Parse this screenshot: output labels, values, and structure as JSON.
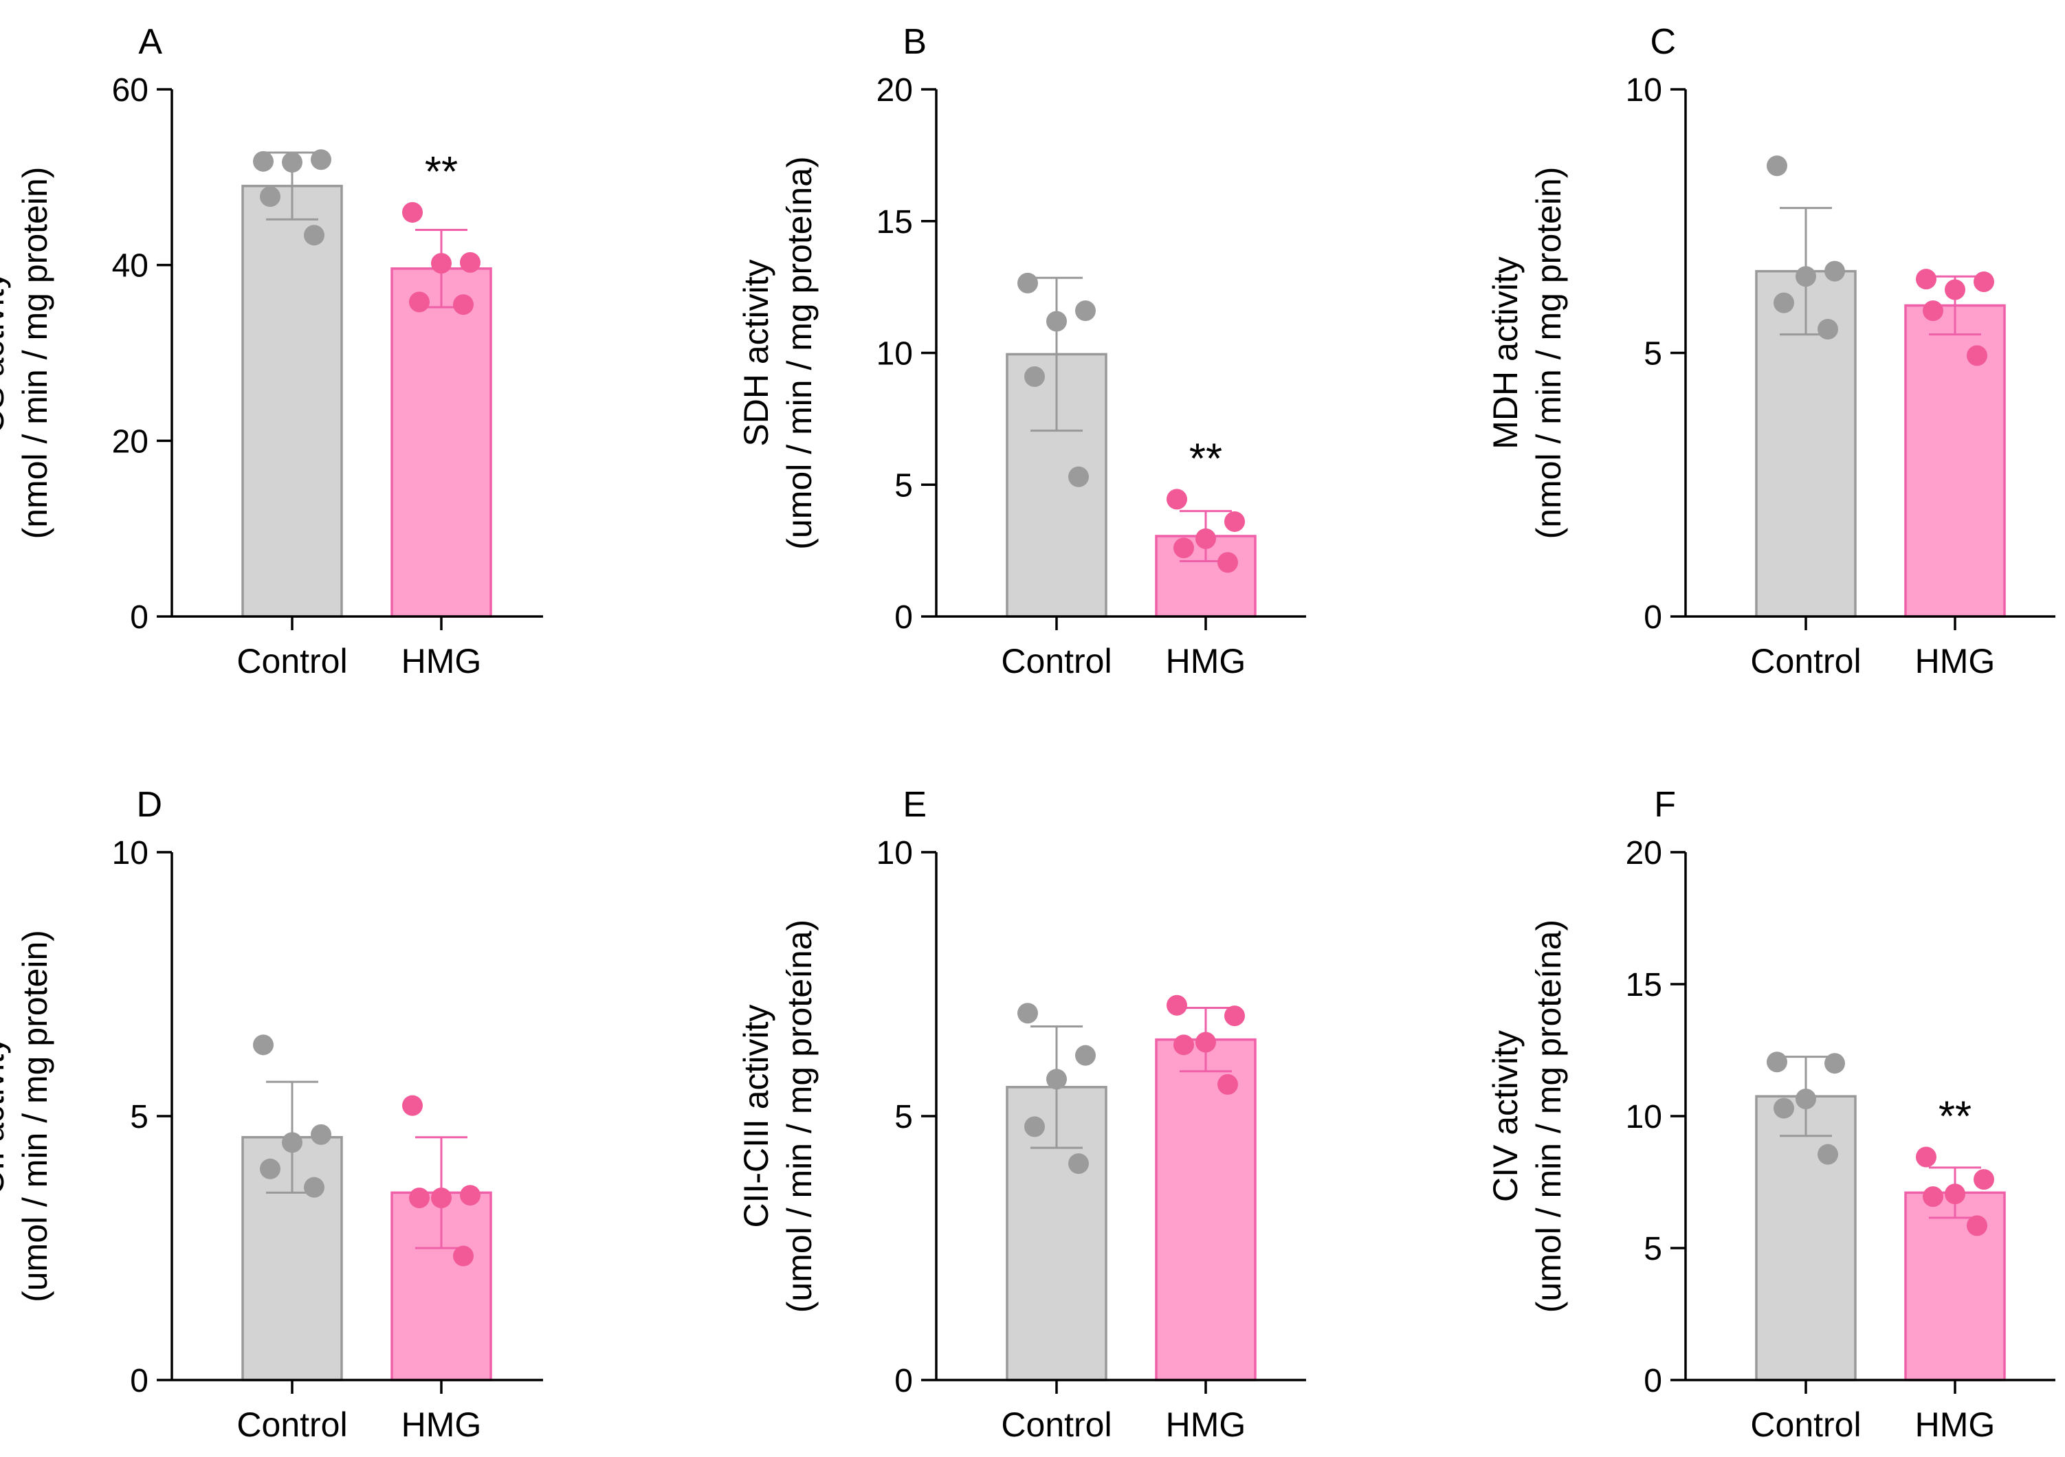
{
  "colors": {
    "control_fill": "#d3d3d3",
    "control_stroke": "#999999",
    "control_point": "#9b9b9b",
    "hmg_fill": "#ffa0cc",
    "hmg_stroke": "#f060a8",
    "hmg_point": "#f25a97",
    "axis": "#000000"
  },
  "chart_data": [
    {
      "id": "A",
      "type": "bar",
      "letter": "A",
      "title": "",
      "ylabel_line1": "CS activity",
      "ylabel_line2": "(nmol / min / mg protein)",
      "ylim": [
        0,
        60
      ],
      "yticks": [
        0,
        20,
        40,
        60
      ],
      "categories": [
        "Control",
        "HMG"
      ],
      "values": [
        49,
        39.6
      ],
      "error": [
        3.8,
        4.4
      ],
      "points": [
        [
          51.8,
          52.0,
          51.7,
          47.8,
          43.4
        ],
        [
          46.0,
          40.3,
          40.2,
          35.8,
          35.5
        ]
      ],
      "significance": [
        "",
        "**"
      ]
    },
    {
      "id": "B",
      "type": "bar",
      "letter": "B",
      "title": "",
      "ylabel_line1": "SDH activity",
      "ylabel_line2": "(umol / min / mg proteína)",
      "ylim": [
        0,
        20
      ],
      "yticks": [
        0,
        5,
        10,
        15,
        20
      ],
      "categories": [
        "Control",
        "HMG"
      ],
      "values": [
        9.95,
        3.05
      ],
      "error": [
        2.9,
        0.95
      ],
      "points": [
        [
          12.65,
          11.6,
          11.2,
          9.1,
          5.3
        ],
        [
          4.45,
          3.6,
          2.95,
          2.6,
          2.05
        ]
      ],
      "significance": [
        "",
        "**"
      ]
    },
    {
      "id": "C",
      "type": "bar",
      "letter": "C",
      "title": "",
      "ylabel_line1": "MDH activity",
      "ylabel_line2": "(nmol / min / mg protein)",
      "ylim": [
        0,
        10
      ],
      "yticks": [
        0,
        5,
        10
      ],
      "categories": [
        "Control",
        "HMG"
      ],
      "values": [
        6.55,
        5.9
      ],
      "error": [
        1.2,
        0.55
      ],
      "points": [
        [
          8.55,
          6.55,
          6.45,
          5.95,
          5.45
        ],
        [
          6.4,
          6.35,
          6.2,
          5.8,
          4.95
        ]
      ],
      "significance": [
        "",
        ""
      ]
    },
    {
      "id": "D",
      "type": "bar",
      "letter": "D",
      "title": "",
      "ylabel_line1": "CII activity",
      "ylabel_line2": "(umol / min / mg protein)",
      "ylim": [
        0,
        10
      ],
      "yticks": [
        0,
        5,
        10
      ],
      "categories": [
        "Control",
        "HMG"
      ],
      "values": [
        4.6,
        3.55
      ],
      "error": [
        1.05,
        1.05
      ],
      "points": [
        [
          6.35,
          4.65,
          4.5,
          4.0,
          3.65
        ],
        [
          5.2,
          3.5,
          3.45,
          3.45,
          2.35
        ]
      ],
      "significance": [
        "",
        ""
      ]
    },
    {
      "id": "E",
      "type": "bar",
      "letter": "E",
      "title": "",
      "ylabel_line1": "CII-CIII activity",
      "ylabel_line2": "(umol / min / mg proteína)",
      "ylim": [
        0,
        10
      ],
      "yticks": [
        0,
        5,
        10
      ],
      "categories": [
        "Control",
        "HMG"
      ],
      "values": [
        5.55,
        6.45
      ],
      "error": [
        1.15,
        0.6
      ],
      "points": [
        [
          6.95,
          6.15,
          5.7,
          4.8,
          4.1
        ],
        [
          7.1,
          6.9,
          6.4,
          6.35,
          5.6
        ]
      ],
      "significance": [
        "",
        ""
      ]
    },
    {
      "id": "F",
      "type": "bar",
      "letter": "F",
      "title": "",
      "ylabel_line1": "CIV activity",
      "ylabel_line2": "(umol / min / mg proteína)",
      "ylim": [
        0,
        20
      ],
      "yticks": [
        0,
        5,
        10,
        15,
        20
      ],
      "categories": [
        "Control",
        "HMG"
      ],
      "values": [
        10.75,
        7.1
      ],
      "error": [
        1.5,
        0.95
      ],
      "points": [
        [
          12.05,
          12.0,
          10.65,
          10.3,
          8.55
        ],
        [
          8.45,
          7.6,
          7.05,
          6.95,
          5.85
        ]
      ],
      "significance": [
        "",
        "**"
      ]
    }
  ]
}
